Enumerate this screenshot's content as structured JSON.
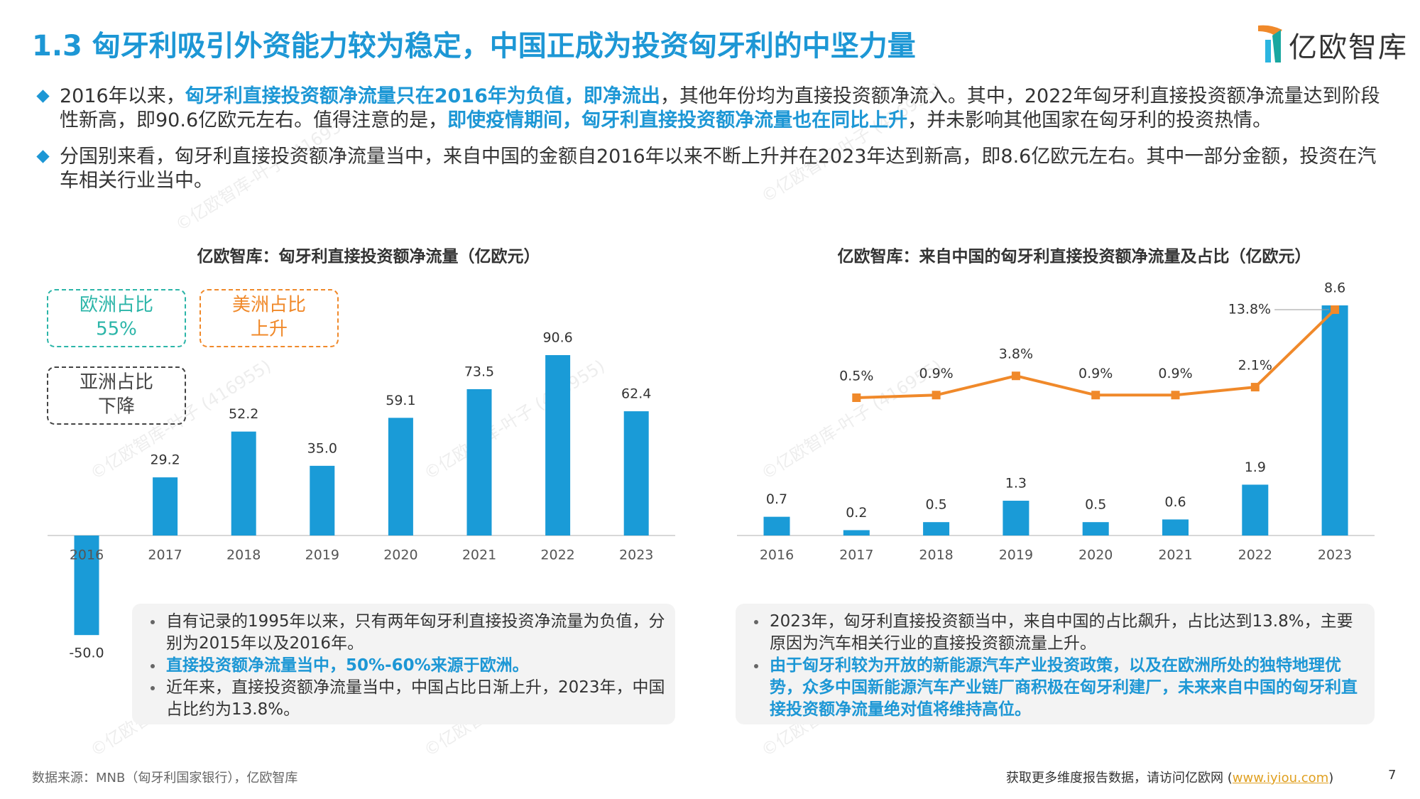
{
  "header": {
    "title": "1.3 匈牙利吸引外资能力较为稳定，中国正成为投资匈牙利的中坚力量",
    "logo": "亿欧智库"
  },
  "bullets": [
    [
      {
        "text": "2016年以来，"
      },
      {
        "text": "匈牙利直接投资额净流量只在2016年为负值，即净流出",
        "em": true
      },
      {
        "text": "，其他年份均为直接投资额净流入。其中，2022年匈牙利直接投资额净流量达到阶段性新高，即90.6亿欧元左右。值得注意的是，"
      },
      {
        "text": "即使疫情期间，匈牙利直接投资额净流量也在同比上升",
        "em": true
      },
      {
        "text": "，并未影响其他国家在匈牙利的投资热情。"
      }
    ],
    [
      {
        "text": "分国别来看，匈牙利直接投资额净流量当中，来自中国的金额自2016年以来不断上升并在2023年达到新高，即8.6亿欧元左右。其中一部分金额，投资在汽车相关行业当中。"
      }
    ]
  ],
  "chart_data": [
    {
      "type": "bar",
      "title": "亿欧智库：匈牙利直接投资额净流量（亿欧元）",
      "categories": [
        "2016",
        "2017",
        "2018",
        "2019",
        "2020",
        "2021",
        "2022",
        "2023"
      ],
      "values": [
        -50.0,
        29.2,
        52.2,
        35.0,
        59.1,
        73.5,
        90.6,
        62.4
      ],
      "value_labels": [
        "-50.0",
        "29.2",
        "52.2",
        "35.0",
        "59.1",
        "73.5",
        "90.6",
        "62.4"
      ],
      "color": "#1a9bd7",
      "annotations": [
        {
          "lines": [
            "欧洲占比",
            "55%"
          ],
          "color": "#2bb5a8"
        },
        {
          "lines": [
            "美洲占比",
            "上升"
          ],
          "color": "#f0892a"
        },
        {
          "lines": [
            "亚洲占比",
            "下降"
          ],
          "color": "#444444"
        }
      ],
      "notes": [
        [
          {
            "text": "自有记录的1995年以来，只有两年匈牙利直接投资净流量为负值，分别为2015年以及2016年。"
          }
        ],
        [
          {
            "text": "直接投资额净流量当中，50%-60%来源于欧洲。",
            "em": true
          }
        ],
        [
          {
            "text": "近年来，直接投资额净流量当中，中国占比日渐上升，2023年，中国占比约为13.8%。"
          }
        ]
      ]
    },
    {
      "type": "bar",
      "title": "亿欧智库：来自中国的匈牙利直接投资额净流量及占比（亿欧元）",
      "categories": [
        "2016",
        "2017",
        "2018",
        "2019",
        "2020",
        "2021",
        "2022",
        "2023"
      ],
      "series": [
        {
          "type": "bar",
          "color": "#1a9bd7",
          "values": [
            0.7,
            0.2,
            0.5,
            1.3,
            0.5,
            0.6,
            1.9,
            8.6
          ]
        },
        {
          "type": "line",
          "axis": "y2",
          "color": "#f0892a",
          "values": [
            null,
            0.5,
            0.9,
            3.8,
            0.9,
            0.9,
            2.1,
            13.8
          ],
          "value_labels": [
            null,
            "0.5%",
            "0.9%",
            "3.8%",
            "0.9%",
            "0.9%",
            "2.1%",
            "13.8%"
          ]
        }
      ],
      "notes": [
        [
          {
            "text": "2023年，匈牙利直接投资额当中，来自中国的占比飙升，占比达到13.8%，主要原因为汽车相关行业的直接投资额流量上升。"
          }
        ],
        [
          {
            "text": "由于匈牙利较为开放的新能源汽车产业投资政策，以及在欧洲所处的独特地理优势，众多中国新能源汽车产业链厂商积极在匈牙利建厂，未来来自中国的匈牙利直接投资额净流量绝对值将维持高位。",
            "em": true
          }
        ]
      ]
    }
  ],
  "watermark": "©亿欧智库-叶子 (416955)",
  "footer": {
    "source": "数据来源：MNB（匈牙利国家银行），亿欧智库",
    "visit": "获取更多维度报告数据，请访问亿欧网 (",
    "link": "www.iyiou.com",
    "close": ")",
    "page": "7"
  }
}
